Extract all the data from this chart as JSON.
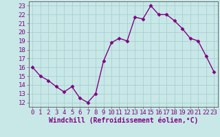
{
  "x": [
    0,
    1,
    2,
    3,
    4,
    5,
    6,
    7,
    8,
    9,
    10,
    11,
    12,
    13,
    14,
    15,
    16,
    17,
    18,
    19,
    20,
    21,
    22,
    23
  ],
  "y": [
    16,
    15,
    14.5,
    13.8,
    13.2,
    13.8,
    12.5,
    12.0,
    13.0,
    16.7,
    18.8,
    19.3,
    19.0,
    21.7,
    21.5,
    23.0,
    22.0,
    22.0,
    21.3,
    20.4,
    19.3,
    19.0,
    17.3,
    15.5
  ],
  "line_color": "#800080",
  "marker": "D",
  "marker_size": 2.5,
  "bg_color": "#c8e8e8",
  "grid_color": "#aacece",
  "xlabel": "Windchill (Refroidissement éolien,°C)",
  "xlabel_fontsize": 7,
  "tick_fontsize": 6.5,
  "ylim": [
    11.5,
    23.5
  ],
  "xlim": [
    -0.5,
    23.5
  ],
  "yticks": [
    12,
    13,
    14,
    15,
    16,
    17,
    18,
    19,
    20,
    21,
    22,
    23
  ],
  "xticks": [
    0,
    1,
    2,
    3,
    4,
    5,
    6,
    7,
    8,
    9,
    10,
    11,
    12,
    13,
    14,
    15,
    16,
    17,
    18,
    19,
    20,
    21,
    22,
    23
  ]
}
